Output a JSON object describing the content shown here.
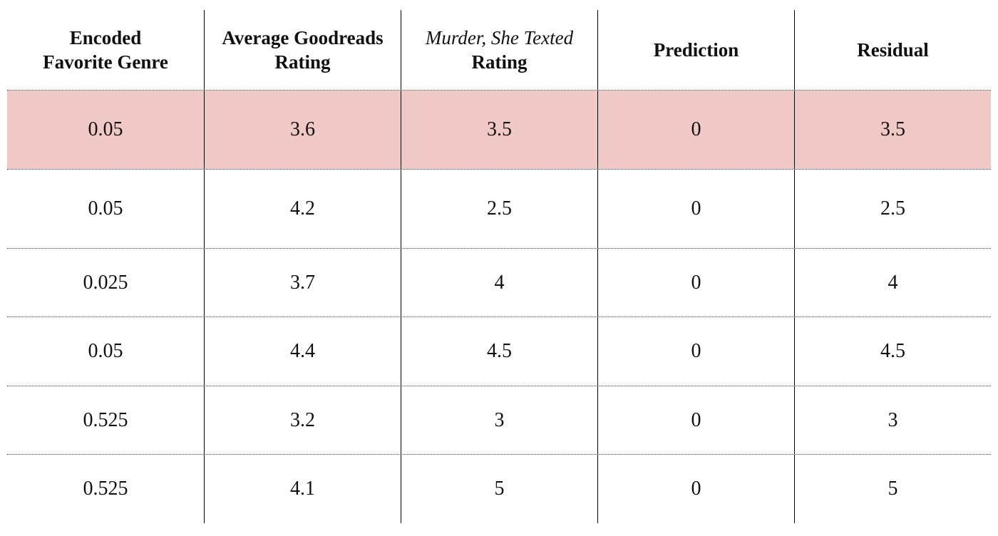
{
  "table": {
    "headers": [
      {
        "line1": "Encoded",
        "line2": "Favorite Genre"
      },
      {
        "line1": "Average Goodreads",
        "line2": "Rating"
      },
      {
        "line1": "Murder, She Texted",
        "line2": "Rating"
      },
      {
        "line1": "",
        "line2": "Prediction"
      },
      {
        "line1": "",
        "line2": "Residual"
      }
    ],
    "rows": [
      [
        "0.05",
        "3.6",
        "3.5",
        "0",
        "3.5"
      ],
      [
        "0.05",
        "4.2",
        "2.5",
        "0",
        "2.5"
      ],
      [
        "0.025",
        "3.7",
        "4",
        "0",
        "4"
      ],
      [
        "0.05",
        "4.4",
        "4.5",
        "0",
        "4.5"
      ],
      [
        "0.525",
        "3.2",
        "3",
        "0",
        "3"
      ],
      [
        "0.525",
        "4.1",
        "5",
        "0",
        "5"
      ]
    ],
    "highlight_color": "#f0c8c6",
    "highlighted_row_index": 0
  }
}
